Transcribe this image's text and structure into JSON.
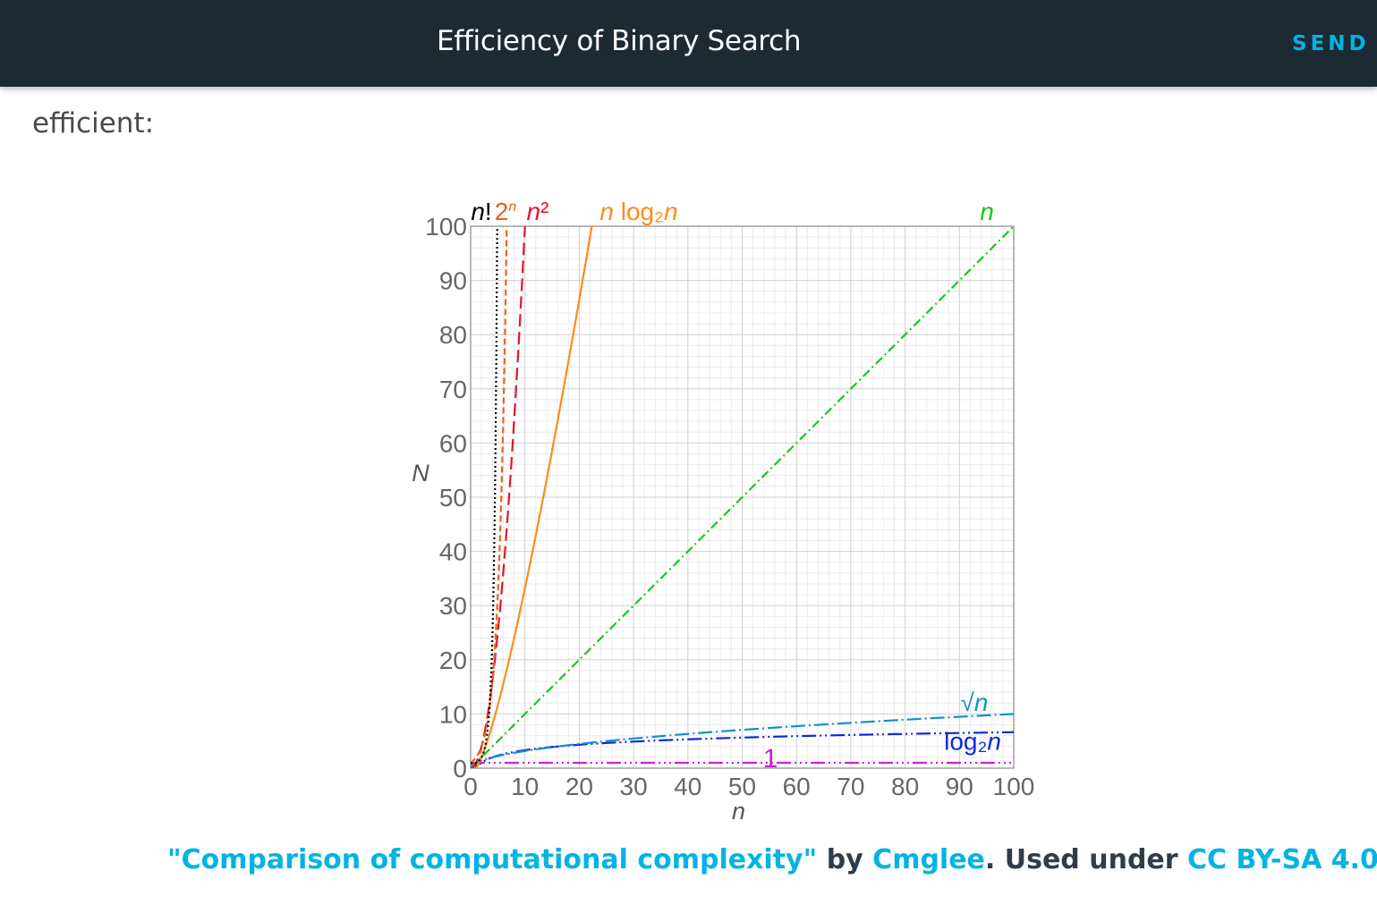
{
  "header": {
    "title": "Efficiency of Binary Search",
    "send_label": "SEND F"
  },
  "content": {
    "paragraph_tail": "efficient:"
  },
  "chart_data": {
    "type": "line",
    "xlabel": "n",
    "ylabel": "N",
    "xlim": [
      0,
      100
    ],
    "ylim": [
      0,
      100
    ],
    "grid": true,
    "xticks": [
      "0",
      "10",
      "20",
      "30",
      "40",
      "50",
      "60",
      "70",
      "80",
      "90",
      "100"
    ],
    "yticks": [
      "0",
      "10",
      "20",
      "30",
      "40",
      "50",
      "60",
      "70",
      "80",
      "90",
      "100"
    ],
    "series": [
      {
        "name": "n!",
        "formula": "factorial",
        "color": "#000000",
        "dash": "2,3"
      },
      {
        "name": "2ⁿ",
        "formula": "exp2",
        "color": "#e6641e",
        "dash": "7,4"
      },
      {
        "name": "n²",
        "formula": "square",
        "color": "#e5132b",
        "dash": "14,6"
      },
      {
        "name": "n log₂n",
        "formula": "nlogn",
        "color": "#ff8c1a",
        "dash": ""
      },
      {
        "name": "n",
        "formula": "linear",
        "color": "#1cc51c",
        "dash": "10,4,2,4"
      },
      {
        "name": "√n",
        "formula": "sqrt",
        "color": "#1590c8",
        "dash": "16,4,2,4"
      },
      {
        "name": "log₂n",
        "formula": "log2",
        "color": "#0b2bd8",
        "dash": "16,4,2,4,2,4"
      },
      {
        "name": "1",
        "formula": "constant",
        "color": "#d31ad3",
        "dash": "16,4,2,4,2,4,2,4"
      }
    ]
  },
  "caption": {
    "work_title": "\"Comparison of computational complexity\"",
    "by": " by ",
    "author": "Cmglee",
    "used_under": ". Used under ",
    "license": "CC BY-SA 4.0",
    "period": "."
  }
}
